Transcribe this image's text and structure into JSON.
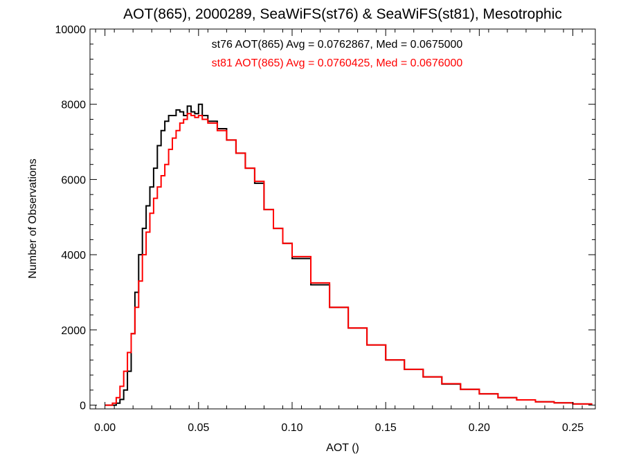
{
  "chart_data": {
    "type": "line",
    "title": "AOT(865), 2000289, SeaWiFS(st76) & SeaWiFS(st81), Mesotrophic",
    "xlabel": "AOT ()",
    "ylabel": "Number of Observations",
    "xlim": [
      -0.008,
      0.262
    ],
    "ylim": [
      -100,
      10000
    ],
    "x_ticks": [
      {
        "value": 0.0,
        "label": "0.00"
      },
      {
        "value": 0.05,
        "label": "0.05"
      },
      {
        "value": 0.1,
        "label": "0.10"
      },
      {
        "value": 0.15,
        "label": "0.15"
      },
      {
        "value": 0.2,
        "label": "0.20"
      },
      {
        "value": 0.25,
        "label": "0.25"
      }
    ],
    "y_ticks": [
      {
        "value": 0,
        "label": "0"
      },
      {
        "value": 2000,
        "label": "2000"
      },
      {
        "value": 4000,
        "label": "4000"
      },
      {
        "value": 6000,
        "label": "6000"
      },
      {
        "value": 8000,
        "label": "8000"
      },
      {
        "value": 10000,
        "label": "10000"
      }
    ],
    "annotations": [
      {
        "text": "st76 AOT(865) Avg = 0.0762867, Med = 0.0675000",
        "color": "#000000"
      },
      {
        "text": "st81 AOT(865) Avg = 0.0760425, Med = 0.0676000",
        "color": "#ff0000"
      }
    ],
    "grid": false,
    "step": true,
    "series": [
      {
        "color": "#000000",
        "x": [
          0.0,
          0.004,
          0.006,
          0.008,
          0.01,
          0.012,
          0.014,
          0.016,
          0.018,
          0.02,
          0.022,
          0.024,
          0.026,
          0.028,
          0.03,
          0.032,
          0.034,
          0.036,
          0.038,
          0.04,
          0.042,
          0.044,
          0.046,
          0.048,
          0.05,
          0.052,
          0.055,
          0.06,
          0.065,
          0.07,
          0.075,
          0.08,
          0.085,
          0.09,
          0.095,
          0.1,
          0.11,
          0.12,
          0.13,
          0.14,
          0.15,
          0.16,
          0.17,
          0.18,
          0.19,
          0.2,
          0.21,
          0.22,
          0.23,
          0.24,
          0.25,
          0.26
        ],
        "values": [
          0,
          0,
          50,
          150,
          400,
          900,
          1900,
          3000,
          4000,
          4700,
          5300,
          5800,
          6300,
          6900,
          7300,
          7550,
          7700,
          7700,
          7850,
          7800,
          7700,
          7950,
          7800,
          7750,
          8000,
          7700,
          7550,
          7350,
          7050,
          6700,
          6300,
          5900,
          5200,
          4700,
          4300,
          3900,
          3200,
          2600,
          2050,
          1600,
          1200,
          950,
          750,
          560,
          420,
          300,
          200,
          140,
          90,
          60,
          30,
          10
        ]
      },
      {
        "color": "#ff0000",
        "x": [
          0.0,
          0.004,
          0.006,
          0.008,
          0.01,
          0.012,
          0.014,
          0.016,
          0.018,
          0.02,
          0.022,
          0.024,
          0.026,
          0.028,
          0.03,
          0.032,
          0.034,
          0.036,
          0.038,
          0.04,
          0.042,
          0.044,
          0.046,
          0.048,
          0.05,
          0.052,
          0.055,
          0.06,
          0.065,
          0.07,
          0.075,
          0.08,
          0.085,
          0.09,
          0.095,
          0.1,
          0.11,
          0.12,
          0.13,
          0.14,
          0.15,
          0.16,
          0.17,
          0.18,
          0.19,
          0.2,
          0.21,
          0.22,
          0.23,
          0.24,
          0.25,
          0.26
        ],
        "values": [
          0,
          50,
          200,
          500,
          900,
          1400,
          1900,
          2600,
          3300,
          4000,
          4600,
          5100,
          5500,
          5800,
          6100,
          6400,
          6800,
          7100,
          7300,
          7500,
          7600,
          7750,
          7700,
          7650,
          7700,
          7600,
          7500,
          7300,
          7050,
          6700,
          6300,
          5950,
          5200,
          4700,
          4300,
          3950,
          3250,
          2600,
          2050,
          1600,
          1200,
          950,
          750,
          570,
          420,
          300,
          200,
          140,
          90,
          60,
          30,
          10
        ]
      }
    ]
  }
}
